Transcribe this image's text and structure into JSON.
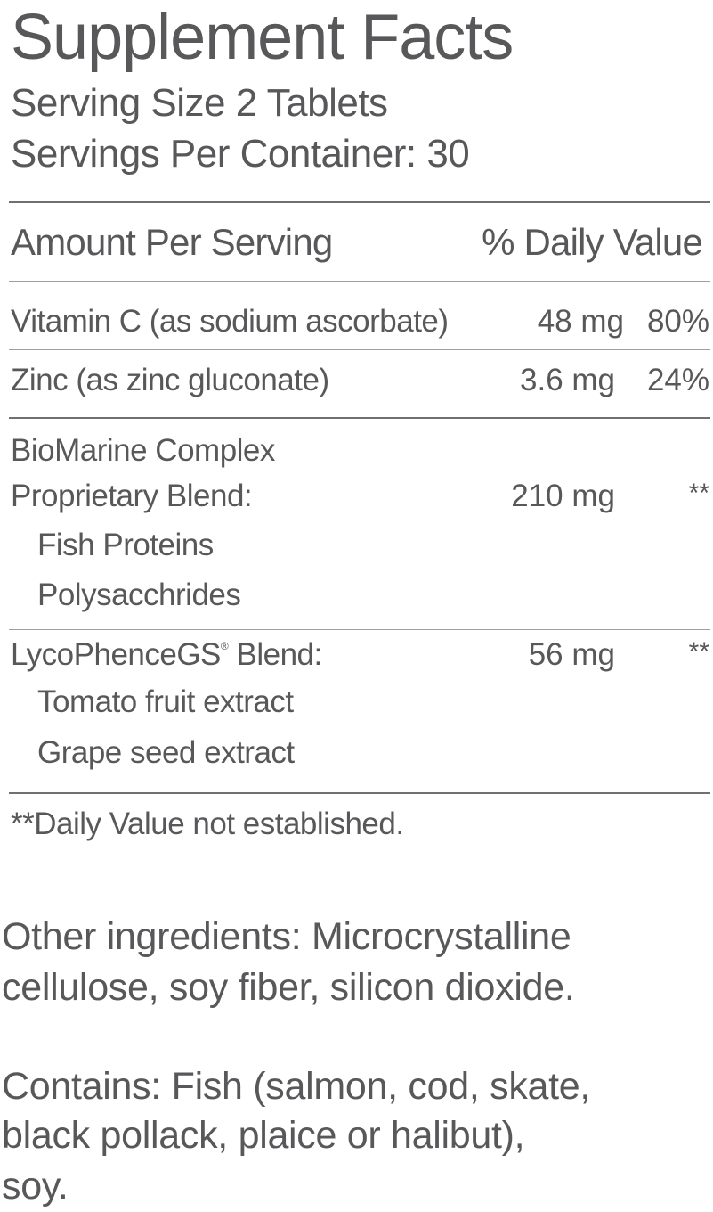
{
  "title": "Supplement Facts",
  "serving_size": "Serving Size 2 Tablets",
  "servings_per_container": "Servings Per Container: 30",
  "header": {
    "amount": "Amount Per Serving",
    "daily_value": "% Daily Value"
  },
  "rows": [
    {
      "name": "Vitamin C (as sodium ascorbate)",
      "amount": "48 mg",
      "dv": "80%"
    },
    {
      "name": "Zinc (as zinc gluconate)",
      "amount": "3.6 mg",
      "dv": "24%"
    }
  ],
  "blends": [
    {
      "name_line1": "BioMarine Complex",
      "name_line2": "Proprietary Blend:",
      "amount": "210 mg",
      "dv": "**",
      "ingredients": [
        "Fish Proteins",
        "Polysacchrides"
      ]
    },
    {
      "name": "LycoPhenceGS",
      "registered": "®",
      "name_suffix": " Blend:",
      "amount": "56 mg",
      "dv": "**",
      "ingredients": [
        "Tomato fruit extract",
        "Grape seed extract"
      ]
    }
  ],
  "footnote": "**Daily Value not established.",
  "other_ingredients": [
    "Other ingredients: Microcrystalline",
    "cellulose, soy fiber, silicon dioxide."
  ],
  "contains": [
    "Contains: Fish (salmon, cod, skate,",
    "black pollack, plaice or halibut),",
    "soy."
  ],
  "colors": {
    "text": "#58585a",
    "rule": "#8a8a8a"
  }
}
